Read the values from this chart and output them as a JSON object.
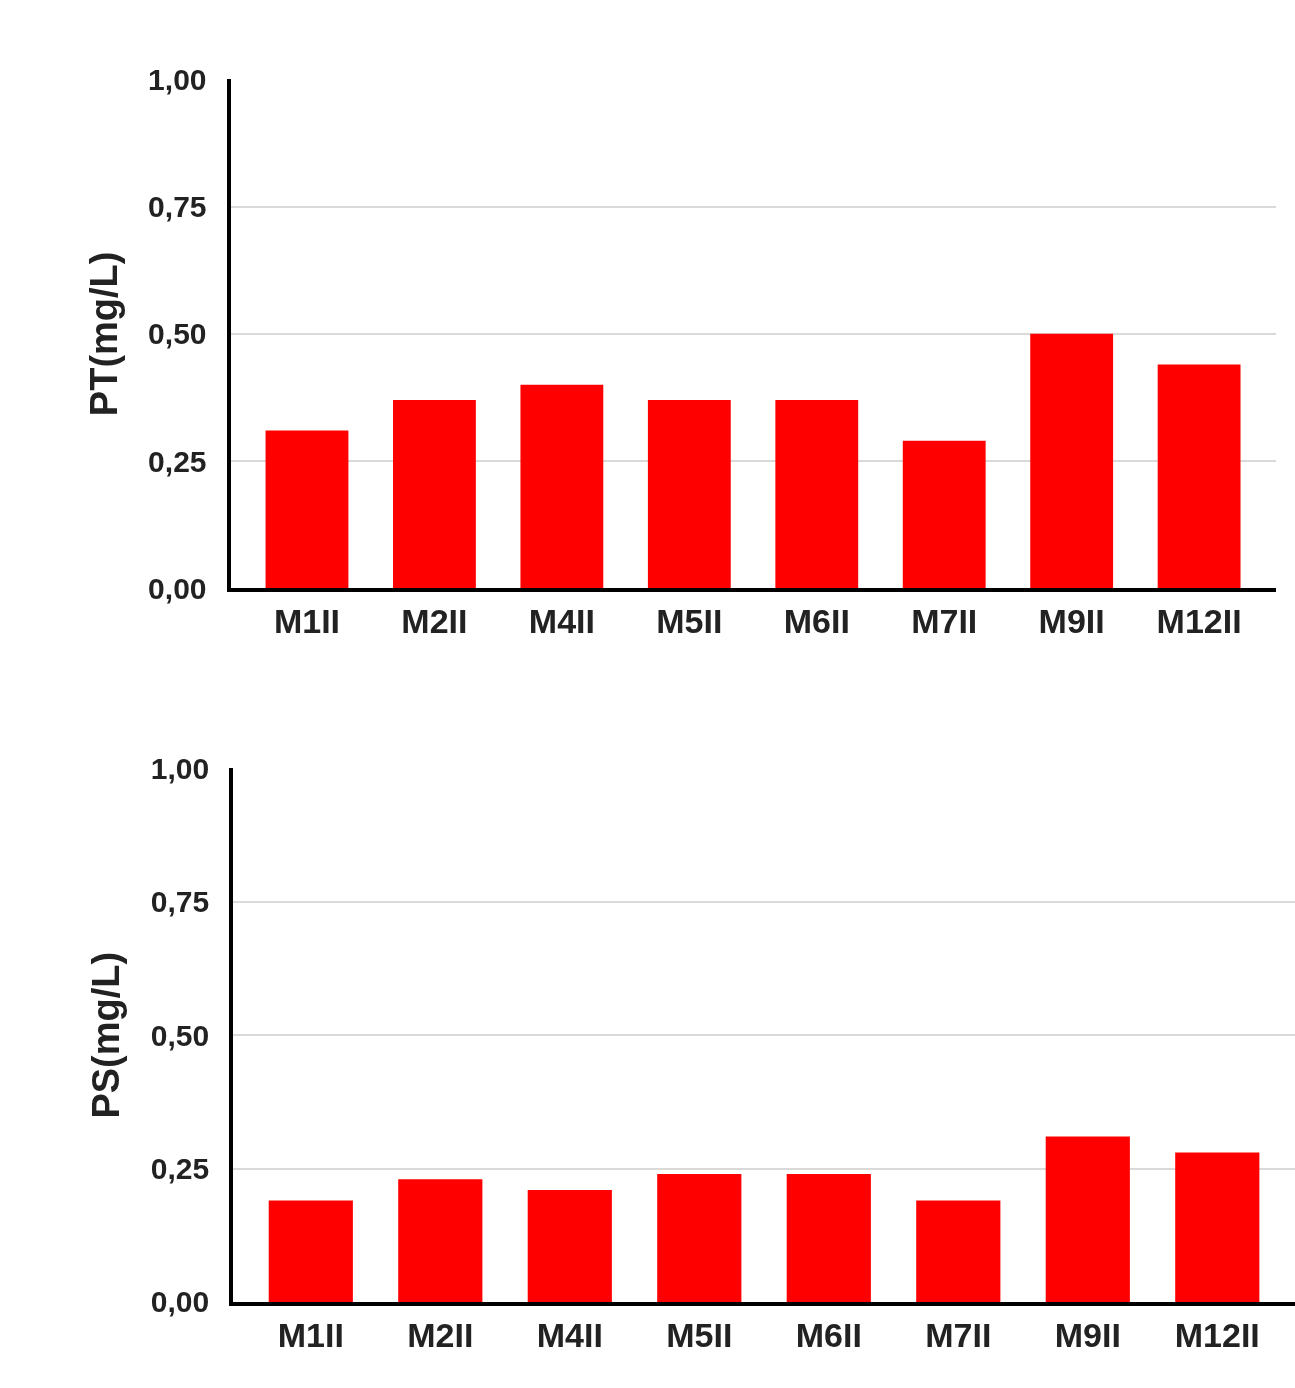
{
  "chart_data": [
    {
      "type": "bar",
      "ylabel": "PT(mg/L)",
      "categories": [
        "M1II",
        "M2II",
        "M4II",
        "M5II",
        "M6II",
        "M7II",
        "M9II",
        "M12II"
      ],
      "values": [
        0.31,
        0.37,
        0.4,
        0.37,
        0.37,
        0.29,
        0.5,
        0.44
      ],
      "color": "#ff0000",
      "ylim": [
        0,
        1
      ],
      "yticks": [
        {
          "value": 0,
          "label": "0,00"
        },
        {
          "value": 0.25,
          "label": "0,25"
        },
        {
          "value": 0.5,
          "label": "0,50"
        },
        {
          "value": 0.75,
          "label": "0,75"
        },
        {
          "value": 1,
          "label": "1,00"
        }
      ],
      "grid": "y"
    },
    {
      "type": "bar",
      "ylabel": "PS(mg/L)",
      "categories": [
        "M1II",
        "M2II",
        "M4II",
        "M5II",
        "M6II",
        "M7II",
        "M9II",
        "M12II"
      ],
      "values": [
        0.19,
        0.23,
        0.21,
        0.24,
        0.24,
        0.19,
        0.31,
        0.28
      ],
      "color": "#ff0000",
      "ylim": [
        0,
        1
      ],
      "yticks": [
        {
          "value": 0,
          "label": "0,00"
        },
        {
          "value": 0.25,
          "label": "0,25"
        },
        {
          "value": 0.5,
          "label": "0,50"
        },
        {
          "value": 0.75,
          "label": "0,75"
        },
        {
          "value": 1,
          "label": "1,00"
        }
      ],
      "grid": "y"
    }
  ]
}
